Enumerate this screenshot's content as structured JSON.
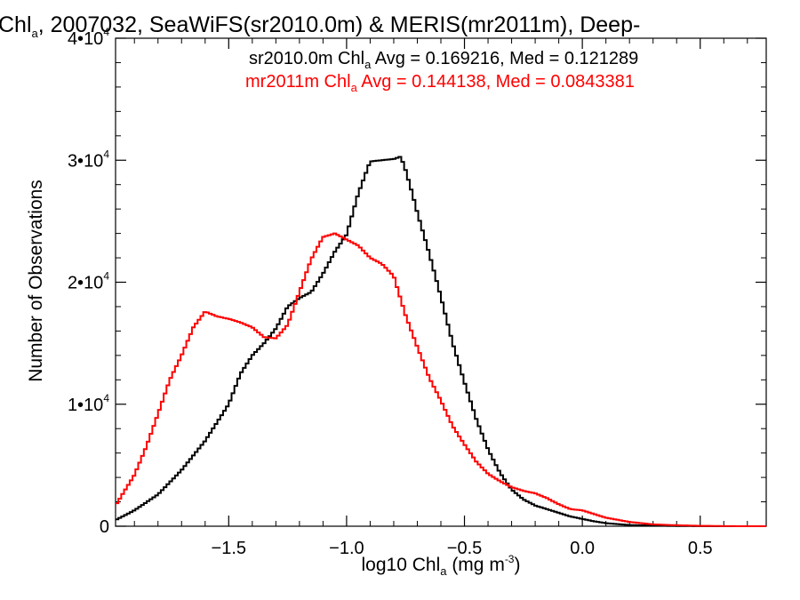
{
  "chart_data": {
    "type": "line",
    "title": {
      "lead": "Chl",
      "sub": "a",
      "rest": ", 2007032, SeaWiFS(sr2010.0m) & MERIS(mr2011m), Deep-"
    },
    "xlabel": {
      "lead": "log10 Chl",
      "sub": "a",
      "mid": " (mg m",
      "sup": "-3",
      "tail": ")"
    },
    "ylabel": "Number of Observations",
    "xlim": [
      -1.98,
      0.78
    ],
    "ylim": [
      0,
      40000
    ],
    "x_ticks": [
      {
        "value": -1.5,
        "label": "−1.5"
      },
      {
        "value": -1.0,
        "label": "−1.0"
      },
      {
        "value": -0.5,
        "label": "−0.5"
      },
      {
        "value": 0.0,
        "label": "0.0"
      },
      {
        "value": 0.5,
        "label": "0.5"
      }
    ],
    "y_ticks": [
      {
        "value": 0,
        "label": "0",
        "exp": ""
      },
      {
        "value": 10000,
        "label": "1•10",
        "exp": "4"
      },
      {
        "value": 20000,
        "label": "2•10",
        "exp": "4"
      },
      {
        "value": 30000,
        "label": "3•10",
        "exp": "4"
      },
      {
        "value": 40000,
        "label": "4•10",
        "exp": "4"
      }
    ],
    "legend_placement": "top-right",
    "series": [
      {
        "name": "sr2010.0m",
        "color": "#000000",
        "legend": {
          "lead": "sr2010.0m Chl",
          "sub": "a",
          "rest": " Avg = 0.169216, Med = 0.121289"
        },
        "x": [
          -1.98,
          -1.9,
          -1.8,
          -1.7,
          -1.6,
          -1.5,
          -1.45,
          -1.4,
          -1.35,
          -1.3,
          -1.25,
          -1.2,
          -1.15,
          -1.1,
          -1.05,
          -1.0,
          -0.95,
          -0.9,
          -0.85,
          -0.8,
          -0.77,
          -0.75,
          -0.72,
          -0.7,
          -0.65,
          -0.6,
          -0.55,
          -0.5,
          -0.45,
          -0.4,
          -0.35,
          -0.3,
          -0.25,
          -0.2,
          -0.15,
          -0.1,
          -0.05,
          0.0,
          0.05,
          0.1,
          0.2,
          0.3,
          0.4,
          0.5,
          0.6,
          0.7,
          0.78
        ],
        "y": [
          500,
          1300,
          2600,
          4600,
          7000,
          10000,
          12500,
          14000,
          15000,
          16200,
          18000,
          18700,
          19200,
          20700,
          22500,
          23900,
          27300,
          29900,
          30000,
          30100,
          30300,
          29200,
          27200,
          25700,
          22400,
          18800,
          15000,
          11800,
          8800,
          6300,
          4400,
          3000,
          2200,
          1700,
          1400,
          1100,
          800,
          600,
          400,
          250,
          100,
          50,
          20,
          10,
          0,
          0,
          0
        ]
      },
      {
        "name": "mr2011m",
        "color": "#ff0000",
        "legend": {
          "lead": "mr2011m Chl",
          "sub": "a",
          "rest": " Avg = 0.144138, Med = 0.0843381"
        },
        "x": [
          -1.98,
          -1.9,
          -1.85,
          -1.8,
          -1.75,
          -1.7,
          -1.65,
          -1.6,
          -1.55,
          -1.5,
          -1.45,
          -1.4,
          -1.35,
          -1.3,
          -1.25,
          -1.2,
          -1.15,
          -1.1,
          -1.05,
          -1.0,
          -0.95,
          -0.9,
          -0.85,
          -0.8,
          -0.75,
          -0.7,
          -0.65,
          -0.6,
          -0.55,
          -0.5,
          -0.45,
          -0.4,
          -0.35,
          -0.3,
          -0.25,
          -0.2,
          -0.15,
          -0.1,
          -0.05,
          0.0,
          0.05,
          0.1,
          0.2,
          0.3,
          0.4,
          0.5,
          0.6,
          0.7,
          0.78
        ],
        "y": [
          1700,
          4200,
          6500,
          9200,
          12000,
          14000,
          16300,
          17600,
          17200,
          17000,
          16700,
          16300,
          15500,
          15400,
          16500,
          19200,
          21900,
          23700,
          24000,
          23500,
          23000,
          22000,
          21500,
          20500,
          17300,
          14700,
          12200,
          10300,
          8200,
          6700,
          5300,
          4300,
          3700,
          3200,
          2900,
          2700,
          2300,
          1800,
          1400,
          1300,
          1000,
          700,
          350,
          150,
          80,
          30,
          10,
          0,
          0
        ]
      }
    ]
  }
}
